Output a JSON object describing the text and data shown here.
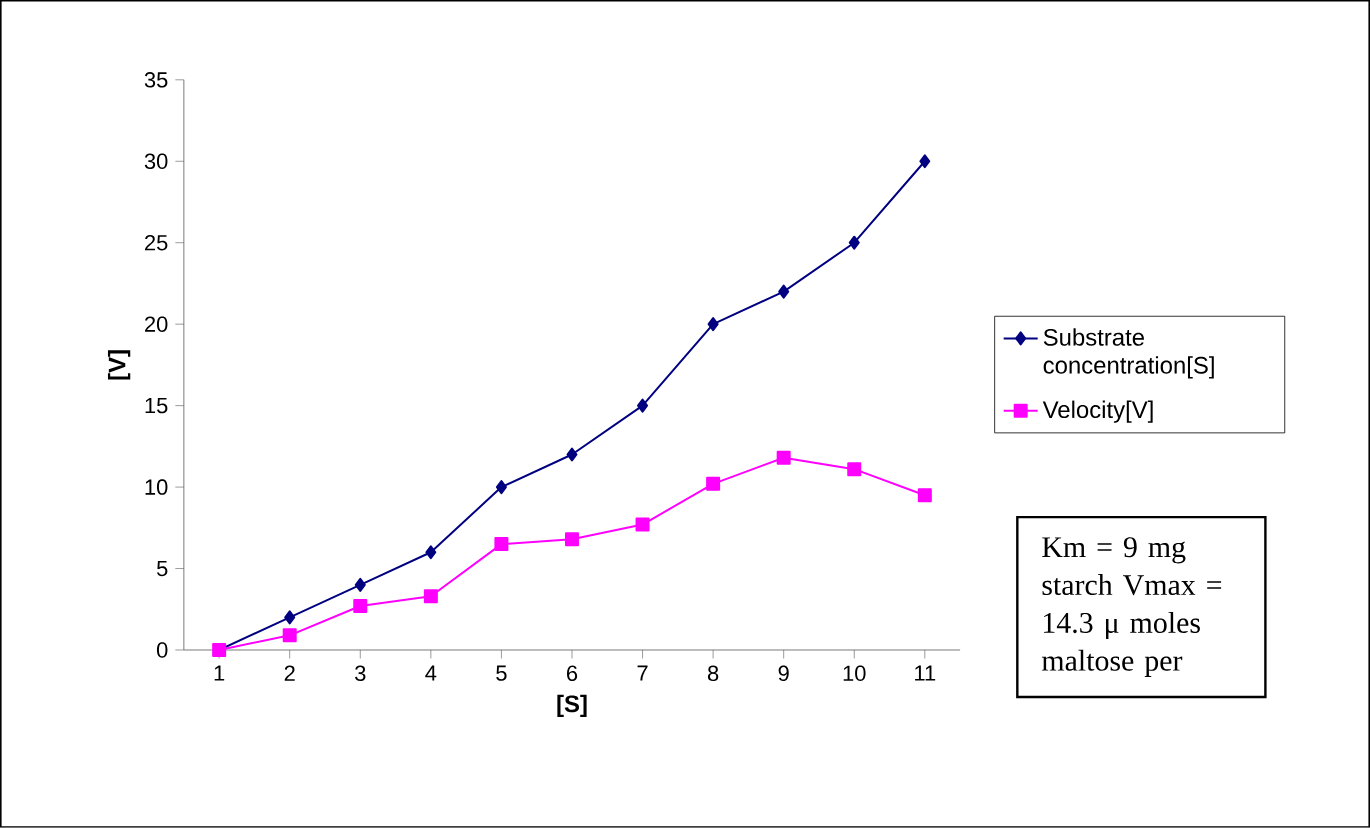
{
  "chart_data": {
    "type": "line",
    "xlabel": "[S]",
    "ylabel": "[V]",
    "categories": [
      "1",
      "2",
      "3",
      "4",
      "5",
      "6",
      "7",
      "8",
      "9",
      "10",
      "11"
    ],
    "series": [
      {
        "name": "Substrate concentration[S]",
        "color": "#000080",
        "marker": "diamond",
        "values": [
          0,
          2,
          4,
          6,
          10,
          12,
          15,
          20,
          22,
          25,
          30
        ]
      },
      {
        "name": "Velocity[V]",
        "color": "#ff00ff",
        "marker": "square",
        "values": [
          0,
          0.9,
          2.7,
          3.3,
          6.5,
          6.8,
          7.7,
          10.2,
          11.8,
          11.1,
          9.5
        ]
      }
    ],
    "ylim": [
      0,
      35
    ],
    "yticks": [
      0,
      5,
      10,
      15,
      20,
      25,
      30,
      35
    ],
    "grid": false,
    "legend": "right",
    "line_style": "solid",
    "annotations": [
      "Km = 9 mg starch Vmax = 14.3 μ moles maltose per"
    ]
  }
}
